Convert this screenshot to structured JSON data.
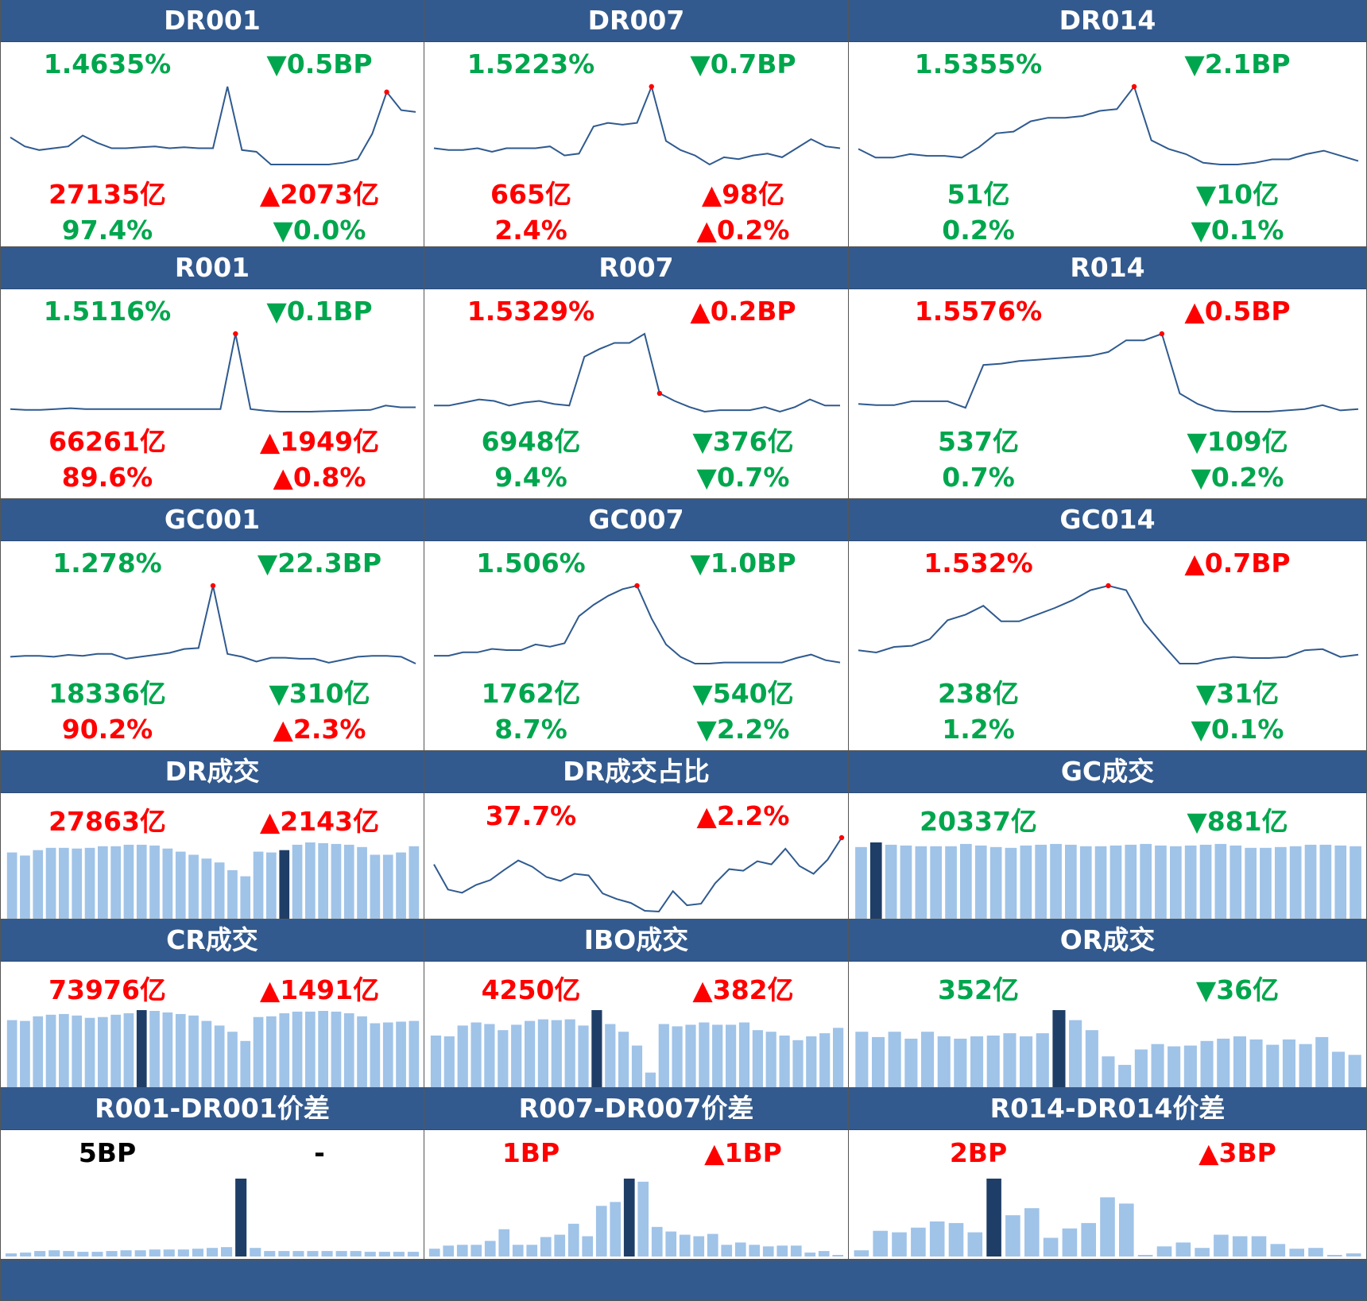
{
  "colors": {
    "header_bg": "#335a8e",
    "up": "#ff0000",
    "down": "#00a64d",
    "line": "#2f5a8f",
    "bar_light": "#a0c3e8",
    "bar_dark": "#1f3e67",
    "marker": "#ff0000"
  },
  "rate_rows": [
    {
      "cells": [
        {
          "title": "DR001",
          "rate": "1.4635%",
          "rate_dir": "down",
          "rate_chg": "▼0.5BP",
          "rate_chg_dir": "down",
          "vol": "27135亿",
          "vol_dir": "up",
          "vol_chg": "▲2073亿",
          "vol_chg_dir": "up",
          "share": "97.4%",
          "share_dir": "down",
          "share_chg": "▼0.0%",
          "share_chg_dir": "down",
          "chart_data": {
            "type": "line",
            "y": [
              1.6,
              1.55,
              1.53,
              1.54,
              1.55,
              1.61,
              1.57,
              1.54,
              1.54,
              1.545,
              1.55,
              1.54,
              1.545,
              1.54,
              1.54,
              1.88,
              1.53,
              1.52,
              1.45,
              1.45,
              1.45,
              1.45,
              1.45,
              1.46,
              1.48,
              1.62,
              1.85,
              1.75,
              1.74
            ],
            "marker_index": 26
          }
        },
        {
          "title": "DR007",
          "rate": "1.5223%",
          "rate_dir": "down",
          "rate_chg": "▼0.7BP",
          "rate_chg_dir": "down",
          "vol": "665亿",
          "vol_dir": "up",
          "vol_chg": "▲98亿",
          "vol_chg_dir": "up",
          "share": "2.4%",
          "share_dir": "up",
          "share_chg": "▲0.2%",
          "share_chg_dir": "up",
          "chart_data": {
            "type": "line",
            "y": [
              1.66,
              1.65,
              1.65,
              1.66,
              1.64,
              1.66,
              1.66,
              1.66,
              1.67,
              1.62,
              1.63,
              1.78,
              1.8,
              1.79,
              1.8,
              2.0,
              1.7,
              1.65,
              1.62,
              1.57,
              1.61,
              1.6,
              1.62,
              1.63,
              1.61,
              1.66,
              1.71,
              1.67,
              1.66
            ],
            "marker_index": 15
          }
        },
        {
          "title": "DR014",
          "rate": "1.5355%",
          "rate_dir": "down",
          "rate_chg": "▼2.1BP",
          "rate_chg_dir": "down",
          "vol": "51亿",
          "vol_dir": "down",
          "vol_chg": "▼10亿",
          "vol_chg_dir": "down",
          "share": "0.2%",
          "share_dir": "down",
          "share_chg": "▼0.1%",
          "share_chg_dir": "down",
          "chart_data": {
            "type": "line",
            "y": [
              1.66,
              1.61,
              1.61,
              1.63,
              1.62,
              1.62,
              1.61,
              1.67,
              1.75,
              1.76,
              1.82,
              1.84,
              1.84,
              1.85,
              1.88,
              1.89,
              2.02,
              1.71,
              1.66,
              1.63,
              1.58,
              1.57,
              1.57,
              1.58,
              1.6,
              1.6,
              1.63,
              1.65,
              1.62,
              1.59
            ],
            "marker_index": 16
          }
        }
      ]
    },
    {
      "cells": [
        {
          "title": "R001",
          "rate": "1.5116%",
          "rate_dir": "down",
          "rate_chg": "▼0.1BP",
          "rate_chg_dir": "down",
          "vol": "66261亿",
          "vol_dir": "up",
          "vol_chg": "▲1949亿",
          "vol_chg_dir": "up",
          "share": "89.6%",
          "share_dir": "up",
          "share_chg": "▲0.8%",
          "share_chg_dir": "up",
          "chart_data": {
            "type": "line",
            "y": [
              1.56,
              1.55,
              1.55,
              1.56,
              1.57,
              1.56,
              1.56,
              1.56,
              1.56,
              1.56,
              1.56,
              1.56,
              1.56,
              1.56,
              1.56,
              2.42,
              1.56,
              1.54,
              1.53,
              1.53,
              1.53,
              1.535,
              1.54,
              1.545,
              1.55,
              1.6,
              1.58,
              1.58
            ],
            "marker_index": 15
          }
        },
        {
          "title": "R007",
          "rate": "1.5329%",
          "rate_dir": "up",
          "rate_chg": "▲0.2BP",
          "rate_chg_dir": "up",
          "vol": "6948亿",
          "vol_dir": "down",
          "vol_chg": "▼376亿",
          "vol_chg_dir": "down",
          "share": "9.4%",
          "share_dir": "down",
          "share_chg": "▼0.7%",
          "share_chg_dir": "down",
          "chart_data": {
            "type": "line",
            "y": [
              1.6,
              1.6,
              1.62,
              1.64,
              1.63,
              1.6,
              1.62,
              1.63,
              1.61,
              1.6,
              1.92,
              1.97,
              2.01,
              2.01,
              2.07,
              1.68,
              1.63,
              1.59,
              1.56,
              1.57,
              1.57,
              1.57,
              1.59,
              1.56,
              1.59,
              1.64,
              1.6,
              1.6
            ],
            "marker_index": 15
          }
        },
        {
          "title": "R014",
          "rate": "1.5576%",
          "rate_dir": "up",
          "rate_chg": "▲0.5BP",
          "rate_chg_dir": "up",
          "vol": "537亿",
          "vol_dir": "down",
          "vol_chg": "▼109亿",
          "vol_chg_dir": "down",
          "share": "0.7%",
          "share_dir": "down",
          "share_chg": "▼0.2%",
          "share_chg_dir": "down",
          "chart_data": {
            "type": "line",
            "y": [
              1.66,
              1.65,
              1.65,
              1.68,
              1.68,
              1.68,
              1.63,
              1.96,
              1.97,
              1.99,
              2.0,
              2.01,
              2.02,
              2.03,
              2.06,
              2.15,
              2.15,
              2.2,
              1.74,
              1.66,
              1.61,
              1.6,
              1.6,
              1.6,
              1.61,
              1.62,
              1.65,
              1.61,
              1.62
            ],
            "marker_index": 17
          }
        }
      ]
    },
    {
      "cells": [
        {
          "title": "GC001",
          "rate": "1.278%",
          "rate_dir": "down",
          "rate_chg": "▼22.3BP",
          "rate_chg_dir": "down",
          "vol": "18336亿",
          "vol_dir": "down",
          "vol_chg": "▼310亿",
          "vol_chg_dir": "down",
          "share": "90.2%",
          "share_dir": "up",
          "share_chg": "▲2.3%",
          "share_chg_dir": "up",
          "chart_data": {
            "type": "line",
            "y": [
              1.62,
              1.63,
              1.63,
              1.62,
              1.64,
              1.63,
              1.65,
              1.65,
              1.6,
              1.62,
              1.64,
              1.66,
              1.7,
              1.71,
              2.35,
              1.65,
              1.62,
              1.57,
              1.61,
              1.61,
              1.6,
              1.6,
              1.56,
              1.59,
              1.62,
              1.63,
              1.63,
              1.62,
              1.55
            ],
            "marker_index": 14
          }
        },
        {
          "title": "GC007",
          "rate": "1.506%",
          "rate_dir": "down",
          "rate_chg": "▼1.0BP",
          "rate_chg_dir": "down",
          "vol": "1762亿",
          "vol_dir": "down",
          "vol_chg": "▼540亿",
          "vol_chg_dir": "down",
          "share": "8.7%",
          "share_dir": "down",
          "share_chg": "▼2.2%",
          "share_chg_dir": "down",
          "chart_data": {
            "type": "line",
            "y": [
              1.68,
              1.68,
              1.71,
              1.71,
              1.74,
              1.73,
              1.73,
              1.78,
              1.76,
              1.79,
              2.03,
              2.13,
              2.21,
              2.27,
              2.3,
              2.01,
              1.78,
              1.67,
              1.61,
              1.61,
              1.62,
              1.62,
              1.62,
              1.62,
              1.62,
              1.66,
              1.69,
              1.64,
              1.62
            ],
            "marker_index": 14
          }
        },
        {
          "title": "GC014",
          "rate": "1.532%",
          "rate_dir": "up",
          "rate_chg": "▲0.7BP",
          "rate_chg_dir": "up",
          "vol": "238亿",
          "vol_dir": "down",
          "vol_chg": "▼31亿",
          "vol_chg_dir": "down",
          "share": "1.2%",
          "share_dir": "down",
          "share_chg": "▼0.1%",
          "share_chg_dir": "down",
          "chart_data": {
            "type": "line",
            "y": [
              1.72,
              1.7,
              1.75,
              1.76,
              1.82,
              1.99,
              2.04,
              2.12,
              1.98,
              1.98,
              2.04,
              2.1,
              2.17,
              2.26,
              2.3,
              2.26,
              1.97,
              1.78,
              1.6,
              1.6,
              1.64,
              1.66,
              1.65,
              1.65,
              1.66,
              1.72,
              1.73,
              1.66,
              1.68
            ],
            "marker_index": 14
          }
        }
      ]
    }
  ],
  "vol_rows": [
    {
      "cells": [
        {
          "title": "DR成交",
          "value": "27863亿",
          "value_dir": "up",
          "change": "▲2143亿",
          "change_dir": "up",
          "chart_data": {
            "type": "bar",
            "values": [
              0.86,
              0.82,
              0.89,
              0.92,
              0.92,
              0.91,
              0.92,
              0.94,
              0.94,
              0.96,
              0.96,
              0.95,
              0.91,
              0.87,
              0.83,
              0.78,
              0.73,
              0.63,
              0.55,
              0.87,
              0.86,
              0.89,
              0.96,
              0.99,
              0.98,
              0.97,
              0.96,
              0.93,
              0.83,
              0.83,
              0.86,
              0.94
            ],
            "highlight_index": 21
          }
        },
        {
          "title": "DR成交占比",
          "value": "37.7%",
          "value_dir": "up",
          "change": "▲2.2%",
          "change_dir": "up",
          "chart_data": {
            "type": "line",
            "y": [
              0.62,
              0.3,
              0.26,
              0.36,
              0.42,
              0.55,
              0.67,
              0.59,
              0.46,
              0.41,
              0.5,
              0.48,
              0.25,
              0.18,
              0.13,
              0.03,
              0.02,
              0.28,
              0.1,
              0.12,
              0.38,
              0.56,
              0.54,
              0.66,
              0.62,
              0.82,
              0.6,
              0.5,
              0.68,
              0.96
            ],
            "marker_index": 29
          }
        },
        {
          "title": "GC成交",
          "value": "20337亿",
          "value_dir": "down",
          "change": "▼881亿",
          "change_dir": "down",
          "chart_data": {
            "type": "bar",
            "values": [
              0.93,
              0.99,
              0.96,
              0.95,
              0.94,
              0.94,
              0.94,
              0.97,
              0.95,
              0.93,
              0.92,
              0.95,
              0.96,
              0.97,
              0.96,
              0.94,
              0.94,
              0.95,
              0.96,
              0.97,
              0.95,
              0.94,
              0.95,
              0.96,
              0.97,
              0.95,
              0.92,
              0.92,
              0.93,
              0.94,
              0.96,
              0.96,
              0.95,
              0.94
            ],
            "highlight_index": 1
          }
        }
      ]
    },
    {
      "cells": [
        {
          "title": "CR成交",
          "value": "73976亿",
          "value_dir": "up",
          "change": "▲1491亿",
          "change_dir": "up",
          "chart_data": {
            "type": "bar",
            "values": [
              0.87,
              0.86,
              0.92,
              0.94,
              0.95,
              0.93,
              0.9,
              0.91,
              0.94,
              0.96,
              1.0,
              0.99,
              0.97,
              0.95,
              0.93,
              0.86,
              0.8,
              0.72,
              0.6,
              0.91,
              0.92,
              0.96,
              0.98,
              0.98,
              0.99,
              0.98,
              0.96,
              0.92,
              0.83,
              0.84,
              0.85,
              0.86
            ],
            "highlight_index": 10
          }
        },
        {
          "title": "IBO成交",
          "value": "4250亿",
          "value_dir": "up",
          "change": "▲382亿",
          "change_dir": "up",
          "chart_data": {
            "type": "bar",
            "values": [
              0.67,
              0.66,
              0.8,
              0.84,
              0.82,
              0.74,
              0.81,
              0.86,
              0.88,
              0.87,
              0.88,
              0.8,
              1.0,
              0.82,
              0.72,
              0.54,
              0.19,
              0.82,
              0.79,
              0.81,
              0.84,
              0.81,
              0.81,
              0.84,
              0.74,
              0.72,
              0.67,
              0.61,
              0.66,
              0.7,
              0.77
            ],
            "highlight_index": 12
          }
        },
        {
          "title": "OR成交",
          "value": "352亿",
          "value_dir": "down",
          "change": "▼36亿",
          "change_dir": "down",
          "chart_data": {
            "type": "bar",
            "values": [
              0.72,
              0.65,
              0.72,
              0.63,
              0.72,
              0.66,
              0.63,
              0.66,
              0.67,
              0.7,
              0.66,
              0.7,
              1.0,
              0.87,
              0.74,
              0.4,
              0.29,
              0.49,
              0.56,
              0.53,
              0.54,
              0.6,
              0.63,
              0.66,
              0.62,
              0.55,
              0.62,
              0.56,
              0.65,
              0.46,
              0.42
            ],
            "highlight_index": 12
          }
        }
      ]
    }
  ],
  "spread_row": {
    "cells": [
      {
        "title": "R001-DR001价差",
        "value": "5BP",
        "value_dir": "neutral",
        "change": "-",
        "change_dir": "neutral",
        "chart_data": {
          "type": "bar",
          "values": [
            0.04,
            0.05,
            0.07,
            0.08,
            0.07,
            0.06,
            0.06,
            0.07,
            0.08,
            0.08,
            0.09,
            0.09,
            0.09,
            0.1,
            0.11,
            0.12,
            1.0,
            0.11,
            0.07,
            0.07,
            0.07,
            0.07,
            0.07,
            0.07,
            0.07,
            0.06,
            0.06,
            0.06,
            0.06
          ],
          "highlight_index": 16
        }
      },
      {
        "title": "R007-DR007价差",
        "value": "1BP",
        "value_dir": "up",
        "change": "▲1BP",
        "change_dir": "up",
        "chart_data": {
          "type": "bar",
          "values": [
            0.1,
            0.14,
            0.15,
            0.15,
            0.2,
            0.35,
            0.15,
            0.15,
            0.25,
            0.28,
            0.42,
            0.26,
            0.65,
            0.7,
            1.0,
            0.96,
            0.38,
            0.32,
            0.28,
            0.26,
            0.29,
            0.15,
            0.18,
            0.15,
            0.13,
            0.14,
            0.14,
            0.05,
            0.07,
            0.02
          ],
          "highlight_index": 14
        }
      },
      {
        "title": "R014-DR014价差",
        "value": "2BP",
        "value_dir": "up",
        "change": "▲3BP",
        "change_dir": "up",
        "chart_data": {
          "type": "bar",
          "values": [
            0.08,
            0.33,
            0.31,
            0.37,
            0.45,
            0.43,
            0.31,
            1.0,
            0.53,
            0.62,
            0.24,
            0.36,
            0.43,
            0.76,
            0.68,
            0.02,
            0.13,
            0.18,
            0.11,
            0.28,
            0.26,
            0.26,
            0.16,
            0.1,
            0.11,
            0.02,
            0.04
          ],
          "highlight_index": 7
        }
      }
    ]
  }
}
